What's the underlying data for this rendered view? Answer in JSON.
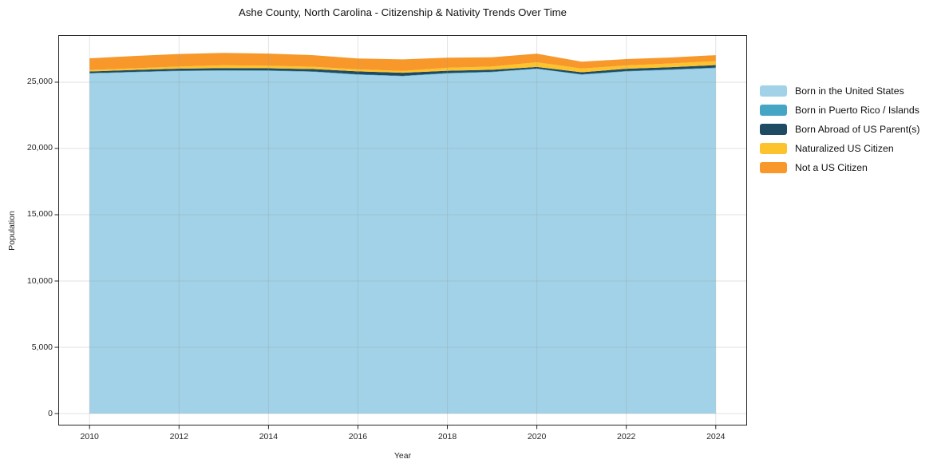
{
  "chart_data": {
    "type": "area",
    "stacked": true,
    "title": "Ashe County, North Carolina - Citizenship & Nativity Trends Over Time",
    "xlabel": "Year",
    "ylabel": "Population",
    "grid": true,
    "legend_position": "right-outside",
    "xlim": [
      2009.3,
      2024.7
    ],
    "ylim": [
      -900,
      28550
    ],
    "x": [
      2010,
      2011,
      2012,
      2013,
      2014,
      2015,
      2016,
      2017,
      2018,
      2019,
      2020,
      2021,
      2022,
      2023,
      2024
    ],
    "x_ticks": [
      {
        "value": 2010,
        "label": "2010"
      },
      {
        "value": 2012,
        "label": "2012"
      },
      {
        "value": 2014,
        "label": "2014"
      },
      {
        "value": 2016,
        "label": "2016"
      },
      {
        "value": 2018,
        "label": "2018"
      },
      {
        "value": 2020,
        "label": "2020"
      },
      {
        "value": 2022,
        "label": "2022"
      },
      {
        "value": 2024,
        "label": "2024"
      }
    ],
    "y_ticks": [
      {
        "value": 0,
        "label": "0"
      },
      {
        "value": 5000,
        "label": "5,000"
      },
      {
        "value": 10000,
        "label": "10,000"
      },
      {
        "value": 15000,
        "label": "15,000"
      },
      {
        "value": 20000,
        "label": "20,000"
      },
      {
        "value": 25000,
        "label": "25,000"
      }
    ],
    "series": [
      {
        "id": "born-us",
        "name": "Born in the United States",
        "color": "#a2d2e7",
        "values": [
          25650,
          25750,
          25830,
          25860,
          25850,
          25780,
          25560,
          25450,
          25650,
          25750,
          26000,
          25560,
          25800,
          25920,
          26060
        ]
      },
      {
        "id": "born-pr-islands",
        "name": "Born in Puerto Rico / Islands",
        "color": "#45a5c5",
        "values": [
          30,
          30,
          40,
          40,
          40,
          30,
          30,
          30,
          40,
          40,
          30,
          30,
          40,
          40,
          40
        ]
      },
      {
        "id": "born-abroad",
        "name": "Born Abroad of US Parent(s)",
        "color": "#1f4a63",
        "values": [
          130,
          140,
          150,
          160,
          160,
          180,
          230,
          230,
          170,
          150,
          120,
          160,
          170,
          170,
          190
        ]
      },
      {
        "id": "naturalized",
        "name": "Naturalized US Citizen",
        "color": "#fcc32d",
        "values": [
          110,
          130,
          160,
          220,
          190,
          170,
          150,
          140,
          230,
          240,
          350,
          280,
          250,
          280,
          300
        ]
      },
      {
        "id": "not-citizen",
        "name": "Not a US Citizen",
        "color": "#f8982a",
        "values": [
          880,
          930,
          950,
          930,
          920,
          880,
          820,
          870,
          760,
          700,
          650,
          520,
          480,
          450,
          450
        ]
      }
    ],
    "style": {
      "spine_color": "#262626",
      "grid_color": "rgba(150,150,150,0.28)",
      "tick_color": "#262626"
    }
  }
}
